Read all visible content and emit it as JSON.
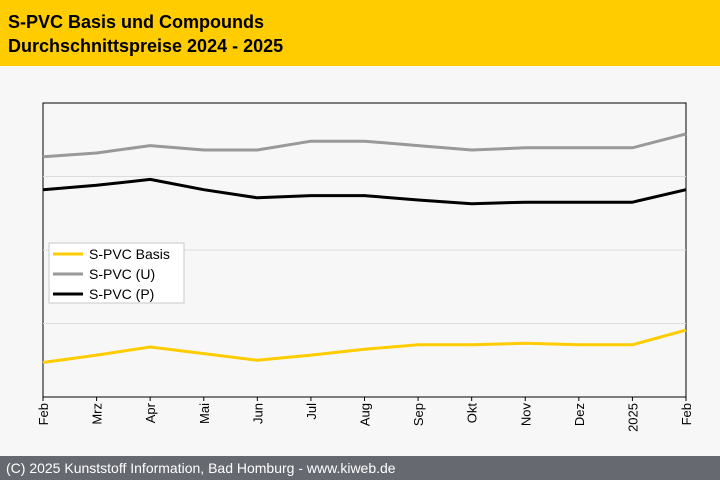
{
  "header": {
    "title_line1": "S-PVC Basis und Compounds",
    "title_line2": "Durchschnittspreise 2024 - 2025",
    "background_color": "#ffcc00"
  },
  "footer": {
    "text": "(C) 2025 Kunststoff Information, Bad Homburg - www.kiweb.de",
    "background_color": "#666a70"
  },
  "chart_data": {
    "type": "line",
    "categories": [
      "Feb",
      "Mrz",
      "Apr",
      "Mai",
      "Jun",
      "Jul",
      "Aug",
      "Sep",
      "Okt",
      "Nov",
      "Dez",
      "2025",
      "Feb"
    ],
    "ylim": [
      0,
      4
    ],
    "grid": true,
    "legend": "middle-left",
    "series": [
      {
        "name": "S-PVC Basis",
        "color": "#ffcc00",
        "values": [
          0.47,
          0.57,
          0.68,
          0.59,
          0.5,
          0.57,
          0.65,
          0.71,
          0.71,
          0.73,
          0.71,
          0.71,
          0.91
        ]
      },
      {
        "name": "S-PVC (U)",
        "color": "#999999",
        "values": [
          3.27,
          3.32,
          3.42,
          3.36,
          3.36,
          3.48,
          3.48,
          3.42,
          3.36,
          3.39,
          3.39,
          3.39,
          3.58
        ]
      },
      {
        "name": "S-PVC (P)",
        "color": "#000000",
        "values": [
          2.82,
          2.88,
          2.96,
          2.82,
          2.71,
          2.74,
          2.74,
          2.68,
          2.63,
          2.65,
          2.65,
          2.65,
          2.82
        ]
      }
    ]
  }
}
